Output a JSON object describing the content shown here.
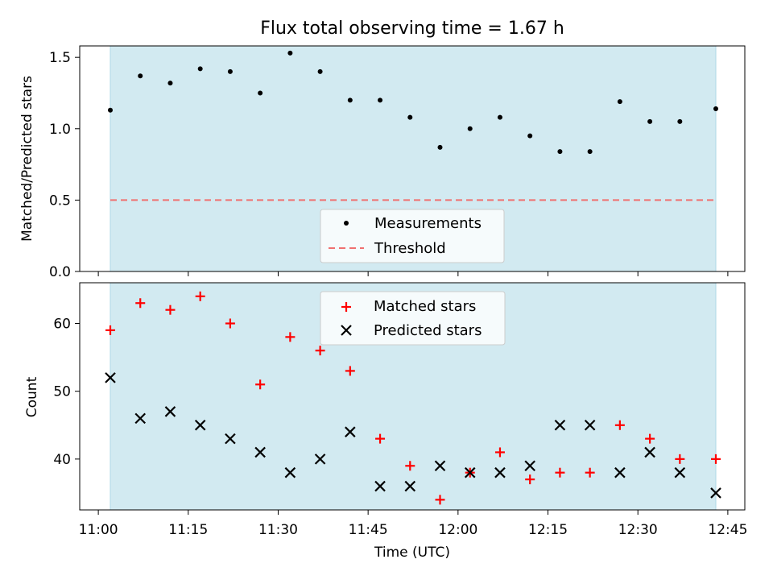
{
  "chart_data": [
    {
      "type": "scatter",
      "title": "Flux total observing time = 1.67 h",
      "ylabel": "Matched/Predicted stars",
      "xlabel": "",
      "ylim": [
        0,
        1.58
      ],
      "yticks": [
        "0.0",
        "0.5",
        "1.0",
        "1.5"
      ],
      "shaded_region": {
        "x": [
          "11:02",
          "12:43"
        ],
        "color": "#add8e6"
      },
      "x": [
        "11:02",
        "11:07",
        "11:12",
        "11:17",
        "11:22",
        "11:27",
        "11:32",
        "11:37",
        "11:42",
        "11:47",
        "11:52",
        "11:57",
        "12:02",
        "12:07",
        "12:12",
        "12:17",
        "12:22",
        "12:27",
        "12:32",
        "12:37",
        "12:43"
      ],
      "series": [
        {
          "name": "Measurements",
          "marker": "dot",
          "color": "#000000",
          "values": [
            1.13,
            1.37,
            1.32,
            1.42,
            1.4,
            1.25,
            1.53,
            1.4,
            1.2,
            1.2,
            1.08,
            0.87,
            1.0,
            1.08,
            0.95,
            0.84,
            0.84,
            1.19,
            1.05,
            1.05,
            1.14
          ]
        },
        {
          "name": "Threshold",
          "style": "dashed",
          "color": "#f07070",
          "value": 0.5
        }
      ],
      "legend": "lower-center"
    },
    {
      "type": "scatter",
      "title": "",
      "ylabel": "Count",
      "xlabel": "Time (UTC)",
      "ylim": [
        32.5,
        66
      ],
      "yticks": [
        "40",
        "50",
        "60"
      ],
      "xticks": [
        "11:00",
        "11:15",
        "11:30",
        "11:45",
        "12:00",
        "12:15",
        "12:30",
        "12:45"
      ],
      "shaded_region": {
        "x": [
          "11:02",
          "12:43"
        ],
        "color": "#add8e6"
      },
      "x": [
        "11:02",
        "11:07",
        "11:12",
        "11:17",
        "11:22",
        "11:27",
        "11:32",
        "11:37",
        "11:42",
        "11:47",
        "11:52",
        "11:57",
        "12:02",
        "12:07",
        "12:12",
        "12:17",
        "12:22",
        "12:27",
        "12:32",
        "12:37",
        "12:43"
      ],
      "series": [
        {
          "name": "Matched stars",
          "marker": "plus",
          "color": "#ff0000",
          "values": [
            59,
            63,
            62,
            64,
            60,
            51,
            58,
            56,
            53,
            43,
            39,
            34,
            38,
            41,
            37,
            38,
            38,
            45,
            43,
            40,
            40
          ]
        },
        {
          "name": "Predicted stars",
          "marker": "x",
          "color": "#000000",
          "values": [
            52,
            46,
            47,
            45,
            43,
            41,
            38,
            40,
            44,
            36,
            36,
            39,
            38,
            38,
            39,
            45,
            45,
            38,
            41,
            38,
            35
          ]
        }
      ],
      "legend": "upper-center"
    }
  ]
}
